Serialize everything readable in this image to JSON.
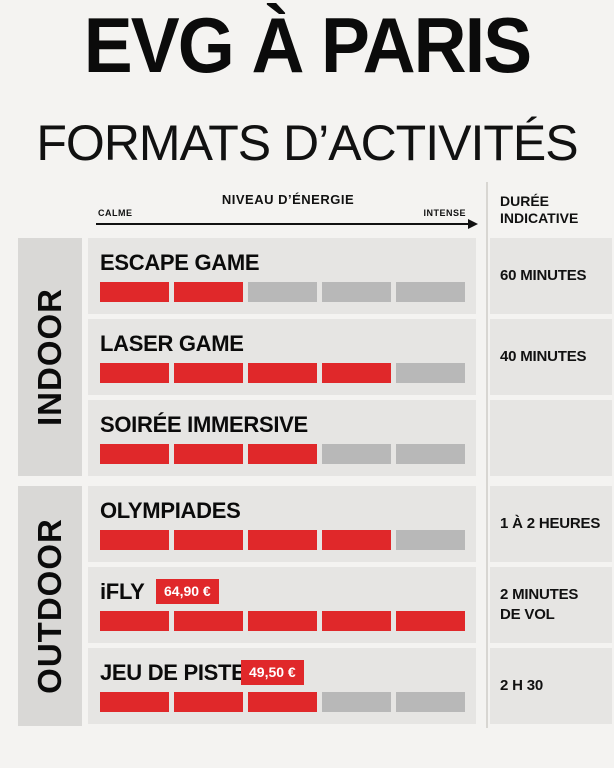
{
  "header": {
    "title": "EVG À PARIS",
    "subtitle": "FORMATS D’ACTIVITÉS"
  },
  "energy_axis": {
    "label": "NIVEAU D’ÉNERGIE",
    "low": "CALME",
    "high": "INTENSE"
  },
  "duration_header": "DURÉE\nINDICATIVE",
  "groups": [
    {
      "label": "INDOOR"
    },
    {
      "label": "OUTDOOR"
    }
  ],
  "activities": [
    {
      "name": "ESCAPE GAME",
      "energy_level": 2,
      "energy_max": 5,
      "duration": "60 MINUTES",
      "price": ""
    },
    {
      "name": "LASER GAME",
      "energy_level": 4,
      "energy_max": 5,
      "duration": "40 MINUTES",
      "price": ""
    },
    {
      "name": "SOIRÉE IMMERSIVE",
      "energy_level": 3,
      "energy_max": 5,
      "duration": "",
      "price": ""
    },
    {
      "name": "OLYMPIADES",
      "energy_level": 4,
      "energy_max": 5,
      "duration": "1 À 2 HEURES",
      "price": ""
    },
    {
      "name": "iFLY",
      "energy_level": 5,
      "energy_max": 5,
      "duration": "2 MINUTES\nDE VOL",
      "price": "64,90 €"
    },
    {
      "name": "JEU DE PISTE",
      "energy_level": 3,
      "energy_max": 5,
      "duration": "2 H 30",
      "price": "49,50 €"
    }
  ],
  "colors": {
    "accent": "#e0282a",
    "bar_off": "#b8b8b8",
    "row_bg": "#e6e5e3",
    "page_bg": "#f4f3f1"
  }
}
